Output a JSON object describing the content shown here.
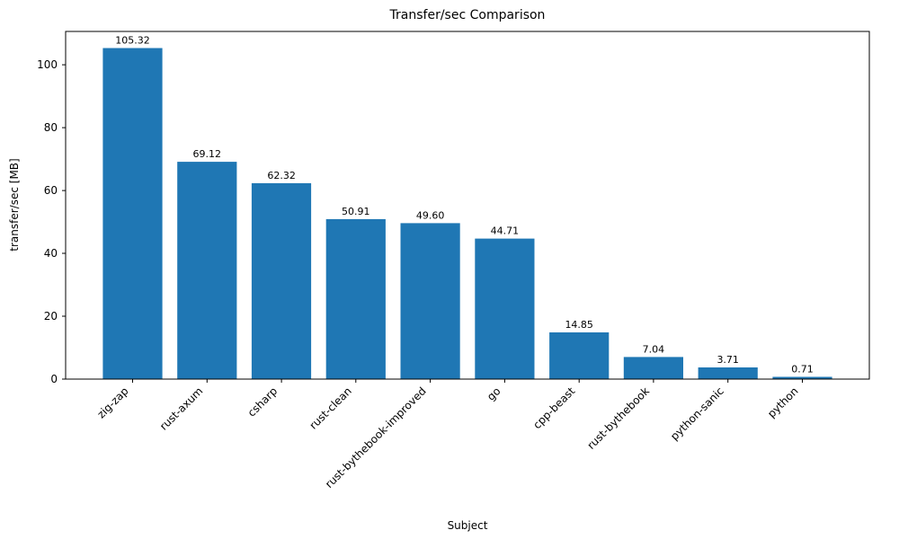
{
  "chart_data": {
    "type": "bar",
    "title": "Transfer/sec Comparison",
    "xlabel": "Subject",
    "ylabel": "transfer/sec [MB]",
    "categories": [
      "zig-zap",
      "rust-axum",
      "csharp",
      "rust-clean",
      "rust-bythebook-improved",
      "go",
      "cpp-beast",
      "rust-bythebook",
      "python-sanic",
      "python"
    ],
    "values": [
      105.32,
      69.12,
      62.32,
      50.91,
      49.6,
      44.71,
      14.85,
      7.04,
      3.71,
      0.71
    ],
    "value_labels": [
      "105.32",
      "69.12",
      "62.32",
      "50.91",
      "49.60",
      "44.71",
      "14.85",
      "7.04",
      "3.71",
      "0.71"
    ],
    "ylim": [
      0,
      110.6
    ],
    "yticks": [
      0,
      20,
      40,
      60,
      80,
      100
    ],
    "bar_color": "#1f77b4",
    "grid": false,
    "legend": false,
    "x_tick_rotation_deg": 45
  }
}
